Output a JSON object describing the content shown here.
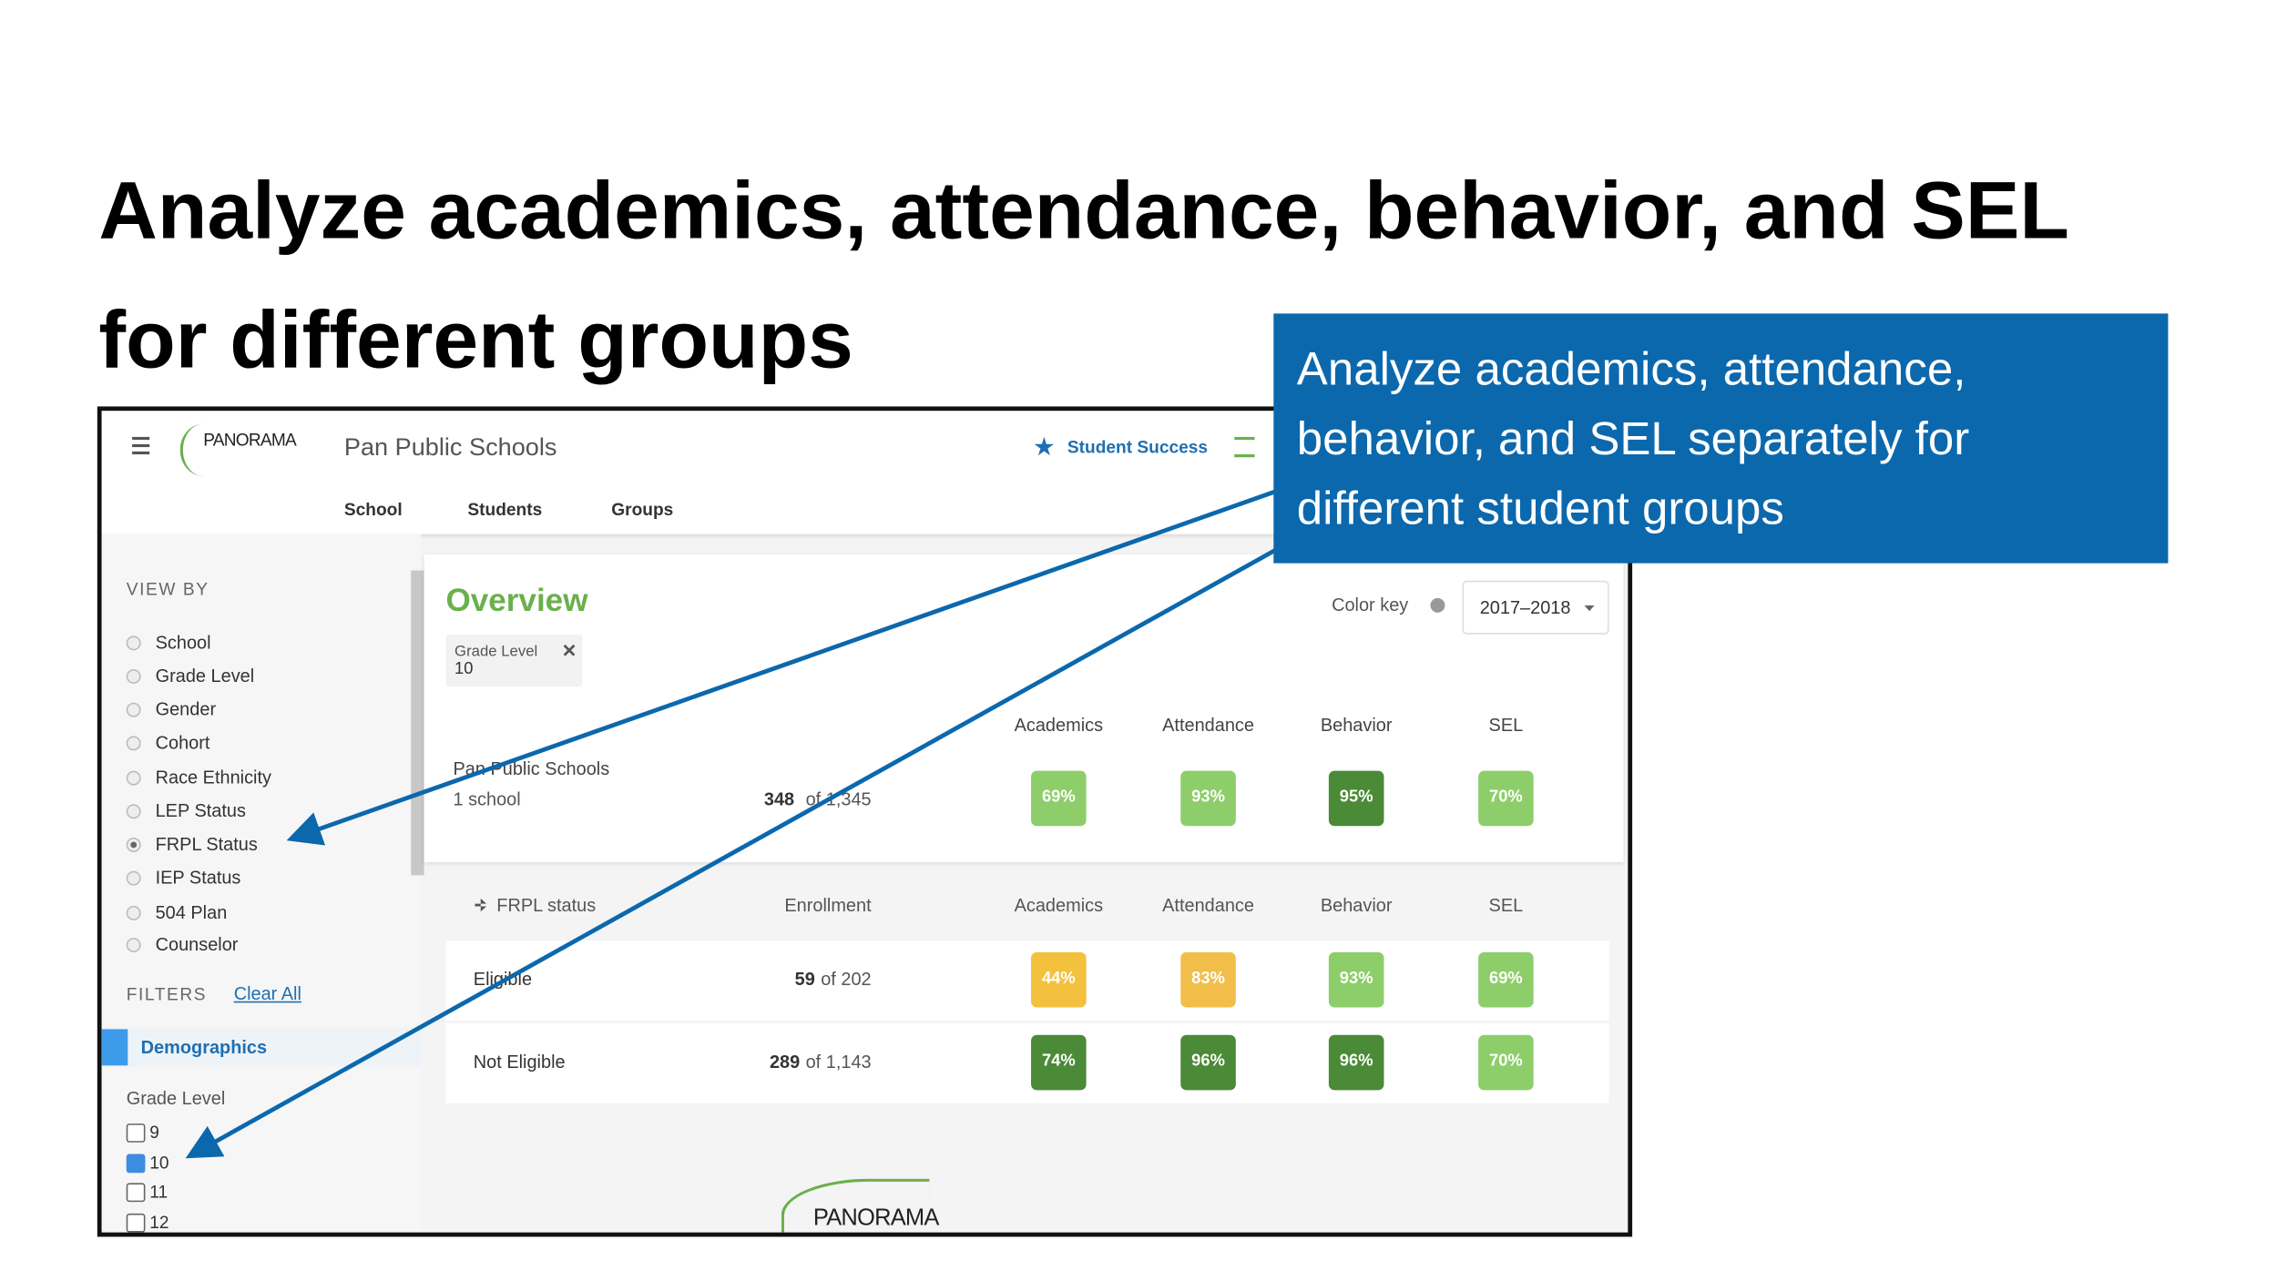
{
  "title": "Analyze academics, attendance, behavior, and SEL for different groups",
  "callout": "Analyze academics, attendance, behavior, and SEL separately for different student groups",
  "app": {
    "brand": "PANORAMA",
    "district": "Pan Public Schools",
    "nav": "Student Success",
    "tabs": [
      "School",
      "Students",
      "Groups"
    ]
  },
  "sidebar": {
    "view_by_label": "VIEW BY",
    "options": [
      "School",
      "Grade Level",
      "Gender",
      "Cohort",
      "Race Ethnicity",
      "LEP Status",
      "FRPL Status",
      "IEP Status",
      "504 Plan",
      "Counselor"
    ],
    "selected": "FRPL Status",
    "filters_label": "FILTERS",
    "clear_all": "Clear All",
    "group": "Demographics",
    "filter_label": "Grade Level",
    "grades": [
      {
        "label": "9",
        "checked": false
      },
      {
        "label": "10",
        "checked": true
      },
      {
        "label": "11",
        "checked": false
      },
      {
        "label": "12",
        "checked": false
      }
    ]
  },
  "overview": {
    "title": "Overview",
    "color_key": "Color key",
    "year": "2017–2018",
    "chip": {
      "label": "Grade Level",
      "value": "10"
    },
    "columns": [
      "Academics",
      "Attendance",
      "Behavior",
      "SEL"
    ],
    "summary": {
      "name": "Pan Public Schools",
      "sub": "1 school",
      "count": "348",
      "of_total": "of 1,345",
      "scores": [
        {
          "label": "69%",
          "color": "#8dce6a"
        },
        {
          "label": "93%",
          "color": "#8dce6a"
        },
        {
          "label": "95%",
          "color": "#4b8a37"
        },
        {
          "label": "70%",
          "color": "#8dce6a"
        }
      ]
    },
    "group_header": {
      "name": "FRPL status",
      "enrollment": "Enrollment"
    },
    "rows": [
      {
        "name": "Eligible",
        "count": "59",
        "of_total": "of 202",
        "scores": [
          {
            "label": "44%",
            "color": "#f4c13f"
          },
          {
            "label": "83%",
            "color": "#f2be4a"
          },
          {
            "label": "93%",
            "color": "#8dce6a"
          },
          {
            "label": "69%",
            "color": "#8dce6a"
          }
        ]
      },
      {
        "name": "Not Eligible",
        "count": "289",
        "of_total": "of 1,143",
        "scores": [
          {
            "label": "74%",
            "color": "#4b8a37"
          },
          {
            "label": "96%",
            "color": "#4b8a37"
          },
          {
            "label": "96%",
            "color": "#4b8a37"
          },
          {
            "label": "70%",
            "color": "#8dce6a"
          }
        ]
      }
    ]
  },
  "footer_logo": "PANORAMA"
}
